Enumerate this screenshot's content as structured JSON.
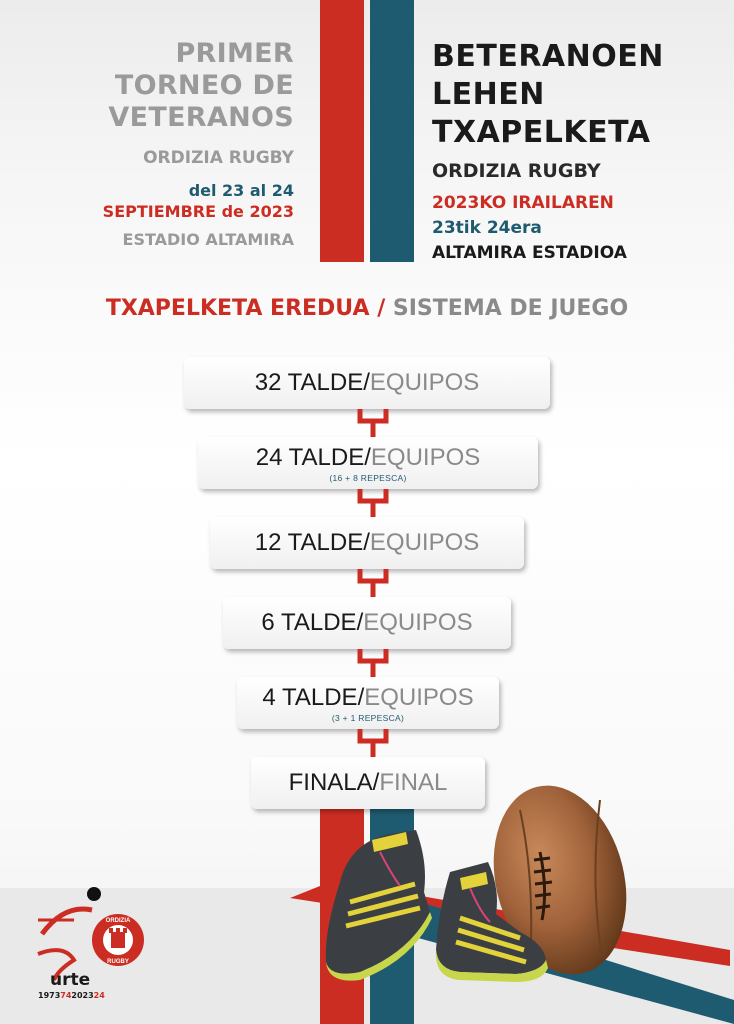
{
  "colors": {
    "red": "#cc2d23",
    "blue": "#1f5b70",
    "grey": "#9a9a9a",
    "dark": "#1a1a1a"
  },
  "spanish": {
    "title_lines": [
      "PRIMER",
      "TORNEO DE",
      "VETERANOS"
    ],
    "club": "ORDIZIA RUGBY",
    "dates": "del 23 al 24",
    "month": "SEPTIEMBRE de 2023",
    "venue": "ESTADIO ALTAMIRA"
  },
  "basque": {
    "title_lines": [
      "BETERANOEN",
      "LEHEN",
      "TXAPELKETA"
    ],
    "club": "ORDIZIA RUGBY",
    "month": "2023KO IRAILAREN",
    "dates": "23tik 24era",
    "venue": "ALTAMIRA ESTADIOA"
  },
  "section": {
    "eu": "TXAPELKETA EREDUA",
    "sep": "/",
    "es": "SISTEMA DE JUEGO"
  },
  "stages": [
    {
      "eu": "32 TALDE/",
      "es": "EQUIPOS",
      "note": ""
    },
    {
      "eu": "24 TALDE/",
      "es": "EQUIPOS",
      "note": "(16 + 8 REPESCA)"
    },
    {
      "eu": "12 TALDE/",
      "es": "EQUIPOS",
      "note": ""
    },
    {
      "eu": "6 TALDE/",
      "es": "EQUIPOS",
      "note": ""
    },
    {
      "eu": "4 TALDE/",
      "es": "EQUIPOS",
      "note": "(3 + 1 REPESCA)"
    },
    {
      "eu": "FINALA/",
      "es": "FINAL",
      "note": ""
    }
  ],
  "logo": {
    "word": "urte",
    "years_a": "1973",
    "years_b": "74",
    "years_c": "2023",
    "years_d": "24",
    "ring_text_top": "ORDIZIA",
    "ring_text_bottom": "RUGBY"
  },
  "icons": [
    "goal-post-icon",
    "rugby-ball-image",
    "rugby-boots-image",
    "club-logo"
  ]
}
